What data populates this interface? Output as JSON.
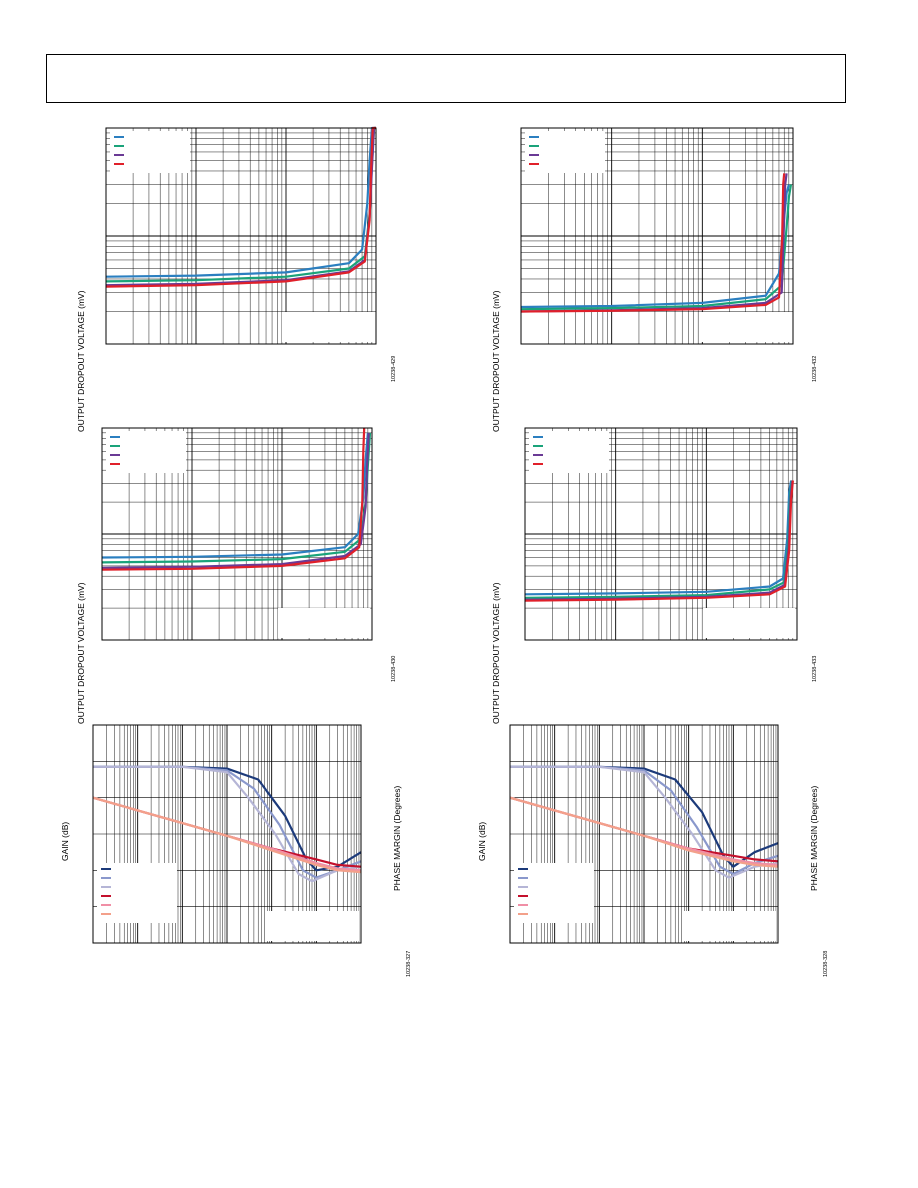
{
  "page": {
    "header_box": ""
  },
  "labels": {
    "dropout_ylabel": "OUTPUT DROPOUT VOLTAGE (mV)",
    "gain_ylabel": "GAIN (dB)",
    "phase_ylabel": "PHASE MARGIN (Degrees)"
  },
  "colors": {
    "blue": "#2b7fc0",
    "green": "#1aa37a",
    "purple": "#6a3a95",
    "red": "#e0202a",
    "navy": "#1c3a7a",
    "lightblue": "#8a98cc",
    "lavender": "#b5b5d6",
    "crimson": "#c4102c",
    "pink": "#f08fa6",
    "salmon": "#f3a08a"
  },
  "panels": [
    {
      "id": "p1",
      "figcode": "10238-429",
      "chart_data": {
        "type": "line",
        "xscale": "log",
        "yscale": "log",
        "xlim": [
          1,
          1000
        ],
        "ylim": [
          10,
          1000
        ],
        "grid": true,
        "legend_placement": "top-left",
        "series": [
          {
            "color": "blue",
            "x": [
              1,
              10,
              100,
              500,
              700,
              800,
              850,
              900,
              1000
            ],
            "y": [
              42,
              43,
              46,
              56,
              75,
              200,
              500,
              1000,
              1000
            ]
          },
          {
            "color": "green",
            "x": [
              1,
              10,
              100,
              500,
              750,
              850,
              900,
              950,
              1000
            ],
            "y": [
              38,
              39,
              42,
              50,
              65,
              160,
              450,
              1000,
              1000
            ]
          },
          {
            "color": "purple",
            "x": [
              1,
              10,
              100,
              500,
              750,
              850,
              900,
              950,
              1000
            ],
            "y": [
              35,
              36,
              39,
              47,
              60,
              150,
              420,
              1000,
              1000
            ]
          },
          {
            "color": "red",
            "x": [
              1,
              10,
              100,
              500,
              750,
              850,
              880,
              920,
              1000
            ],
            "y": [
              34,
              35,
              38,
              46,
              58,
              140,
              400,
              1000,
              1000
            ]
          }
        ]
      }
    },
    {
      "id": "p2",
      "figcode": "10238-432",
      "chart_data": {
        "type": "line",
        "xscale": "log",
        "yscale": "log",
        "xlim": [
          1,
          1000
        ],
        "ylim": [
          10,
          1000
        ],
        "grid": true,
        "legend_placement": "top-left",
        "series": [
          {
            "color": "blue",
            "x": [
              1,
              10,
              100,
              500,
              700,
              800,
              850,
              900
            ],
            "y": [
              22,
              22.5,
              24,
              28,
              45,
              150,
              250,
              300
            ]
          },
          {
            "color": "green",
            "x": [
              1,
              10,
              100,
              500,
              750,
              850,
              900,
              950
            ],
            "y": [
              21,
              21.5,
              22.5,
              26,
              35,
              120,
              230,
              300
            ]
          },
          {
            "color": "purple",
            "x": [
              1,
              10,
              100,
              500,
              750,
              800,
              820,
              850
            ],
            "y": [
              20,
              20.5,
              21.5,
              24,
              30,
              150,
              300,
              380
            ]
          },
          {
            "color": "red",
            "x": [
              1,
              10,
              100,
              500,
              700,
              760,
              780,
              800
            ],
            "y": [
              20,
              20.3,
              21,
              23,
              27,
              100,
              300,
              380
            ]
          }
        ]
      }
    },
    {
      "id": "p3",
      "figcode": "10238-430",
      "chart_data": {
        "type": "line",
        "xscale": "log",
        "yscale": "log",
        "xlim": [
          1,
          1000
        ],
        "ylim": [
          10,
          1000
        ],
        "grid": true,
        "legend_placement": "top-left",
        "series": [
          {
            "color": "blue",
            "x": [
              1,
              10,
              100,
              500,
              700,
              800,
              850,
              900
            ],
            "y": [
              60,
              61,
              64,
              75,
              100,
              220,
              500,
              900
            ]
          },
          {
            "color": "green",
            "x": [
              1,
              10,
              100,
              500,
              750,
              850,
              900,
              950
            ],
            "y": [
              54,
              55,
              58,
              68,
              90,
              200,
              450,
              900
            ]
          },
          {
            "color": "purple",
            "x": [
              1,
              10,
              100,
              500,
              750,
              850,
              880,
              920
            ],
            "y": [
              48,
              49,
              52,
              62,
              80,
              180,
              420,
              900
            ]
          },
          {
            "color": "red",
            "x": [
              1,
              10,
              100,
              500,
              720,
              780,
              800,
              820
            ],
            "y": [
              46,
              47,
              50,
              59,
              75,
              200,
              600,
              1000
            ]
          }
        ]
      }
    },
    {
      "id": "p4",
      "figcode": "10238-433",
      "chart_data": {
        "type": "line",
        "xscale": "log",
        "yscale": "log",
        "xlim": [
          1,
          1000
        ],
        "ylim": [
          10,
          1000
        ],
        "grid": true,
        "legend_placement": "top-left",
        "series": [
          {
            "color": "blue",
            "x": [
              1,
              10,
              100,
              500,
              700,
              780,
              820,
              860
            ],
            "y": [
              27,
              27.5,
              28.5,
              32,
              38,
              90,
              250,
              320
            ]
          },
          {
            "color": "green",
            "x": [
              1,
              10,
              100,
              500,
              720,
              800,
              840,
              880
            ],
            "y": [
              25,
              25.5,
              26.5,
              30,
              35,
              80,
              230,
              320
            ]
          },
          {
            "color": "purple",
            "x": [
              1,
              10,
              100,
              500,
              730,
              810,
              850,
              890
            ],
            "y": [
              24,
              24.5,
              25.5,
              28,
              33,
              75,
              220,
              320
            ]
          },
          {
            "color": "red",
            "x": [
              1,
              10,
              100,
              500,
              740,
              820,
              860,
              900
            ],
            "y": [
              23.5,
              24,
              25,
              27,
              32,
              70,
              210,
              320
            ]
          }
        ]
      }
    },
    {
      "id": "p5",
      "figcode": "10238-327",
      "chart_data": {
        "type": "line",
        "xscale": "log",
        "xlim": [
          10,
          10000000
        ],
        "ylim": [
          -60,
          60
        ],
        "grid": true,
        "legend_placement": "bottom-left",
        "series": [
          {
            "color": "navy",
            "x": [
              10,
              100,
              1000,
              10000,
              50000,
              200000,
              600000,
              1000000,
              3000000,
              10000000
            ],
            "y": [
              37,
              37,
              37,
              36,
              30,
              10,
              -14,
              -20,
              -18,
              -10
            ]
          },
          {
            "color": "lightblue",
            "x": [
              10,
              100,
              1000,
              10000,
              40000,
              150000,
              500000,
              1000000,
              3000000,
              10000000
            ],
            "y": [
              37,
              37,
              37,
              35,
              25,
              5,
              -20,
              -24,
              -20,
              -15
            ]
          },
          {
            "color": "lavender",
            "x": [
              10,
              100,
              1000,
              10000,
              30000,
              120000,
              400000,
              800000,
              3000000,
              10000000
            ],
            "y": [
              37,
              37,
              37,
              34,
              20,
              0,
              -22,
              -26,
              -20,
              -18
            ]
          },
          {
            "color": "crimson",
            "x": [
              10,
              100,
              1000,
              10000,
              100000,
              1000000,
              3000000,
              10000000
            ],
            "y": [
              20,
              13,
              6,
              -1,
              -8,
              -14,
              -17,
              -18
            ]
          },
          {
            "color": "pink",
            "x": [
              10,
              100,
              1000,
              10000,
              100000,
              1000000,
              3000000,
              10000000
            ],
            "y": [
              20,
              13,
              6,
              -1,
              -8,
              -16,
              -19,
              -20
            ]
          },
          {
            "color": "salmon",
            "x": [
              10,
              100,
              1000,
              10000,
              100000,
              1000000,
              3000000,
              10000000
            ],
            "y": [
              20,
              13,
              6,
              -1,
              -9,
              -17,
              -20,
              -21
            ]
          }
        ]
      }
    },
    {
      "id": "p6",
      "figcode": "10238-328",
      "chart_data": {
        "type": "line",
        "xscale": "log",
        "xlim": [
          10,
          10000000
        ],
        "ylim": [
          -60,
          60
        ],
        "grid": true,
        "legend_placement": "bottom-left",
        "series": [
          {
            "color": "navy",
            "x": [
              10,
              100,
              1000,
              10000,
              50000,
              200000,
              600000,
              1000000,
              3000000,
              10000000
            ],
            "y": [
              37,
              37,
              37,
              36,
              30,
              12,
              -12,
              -18,
              -10,
              -5
            ]
          },
          {
            "color": "lightblue",
            "x": [
              10,
              100,
              1000,
              10000,
              40000,
              150000,
              500000,
              1000000,
              3000000,
              10000000
            ],
            "y": [
              37,
              37,
              37,
              35,
              24,
              4,
              -18,
              -22,
              -16,
              -12
            ]
          },
          {
            "color": "lavender",
            "x": [
              10,
              100,
              1000,
              10000,
              30000,
              120000,
              400000,
              800000,
              3000000,
              10000000
            ],
            "y": [
              37,
              37,
              37,
              34,
              20,
              0,
              -20,
              -24,
              -18,
              -16
            ]
          },
          {
            "color": "crimson",
            "x": [
              10,
              100,
              1000,
              10000,
              100000,
              1000000,
              3000000,
              10000000
            ],
            "y": [
              20,
              13,
              6,
              -1,
              -8,
              -12,
              -14,
              -15
            ]
          },
          {
            "color": "pink",
            "x": [
              10,
              100,
              1000,
              10000,
              100000,
              1000000,
              3000000,
              10000000
            ],
            "y": [
              20,
              13,
              6,
              -1,
              -8,
              -14,
              -16,
              -17
            ]
          },
          {
            "color": "salmon",
            "x": [
              10,
              100,
              1000,
              10000,
              100000,
              1000000,
              3000000,
              10000000
            ],
            "y": [
              20,
              13,
              6,
              -1,
              -9,
              -15,
              -17,
              -18
            ]
          }
        ]
      }
    }
  ]
}
